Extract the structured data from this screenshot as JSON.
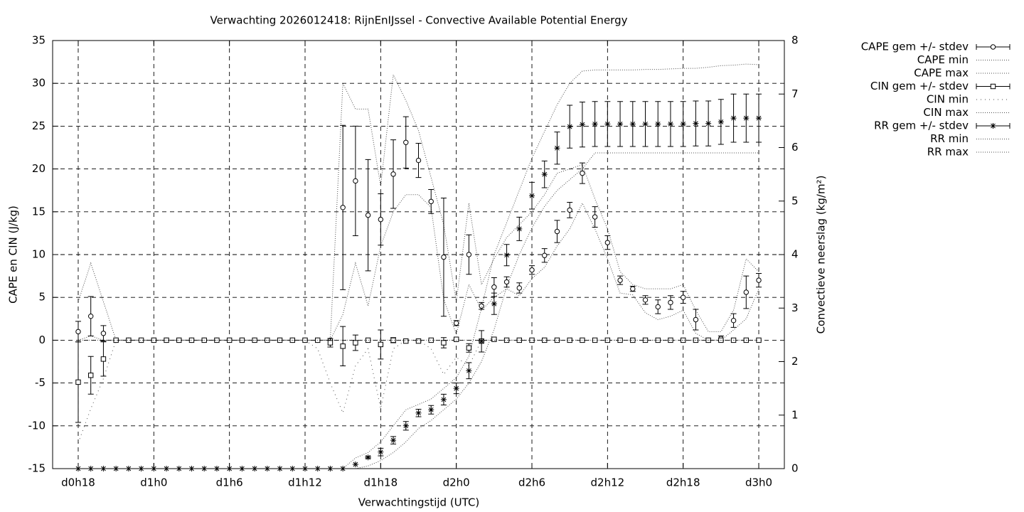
{
  "chart_data": {
    "type": "errorbar-line",
    "title": "Verwachting 2026012418: RijnEnIJssel - Convective Available Potential Energy",
    "x_label": "Verwachtingstijd (UTC)",
    "y_label": "CAPE en CIN (J/kg)",
    "y2_label": "Convectieve neerslag (kg/m²)",
    "categories": [
      "d0h18",
      null,
      null,
      null,
      null,
      null,
      "d1h0",
      null,
      null,
      null,
      null,
      null,
      "d1h6",
      null,
      null,
      null,
      null,
      null,
      "d1h12",
      null,
      null,
      null,
      null,
      null,
      "d1h18",
      null,
      null,
      null,
      null,
      null,
      "d2h0",
      null,
      null,
      null,
      null,
      null,
      "d2h6",
      null,
      null,
      null,
      null,
      null,
      "d2h12",
      null,
      null,
      null,
      null,
      null,
      "d2h18",
      null,
      null,
      null,
      null,
      null,
      "d3h0"
    ],
    "ylim": [
      -15,
      35
    ],
    "yticks": [
      -15,
      -10,
      -5,
      0,
      5,
      10,
      15,
      20,
      25,
      30,
      35
    ],
    "y2lim": [
      0,
      8
    ],
    "y2ticks": [
      0,
      1,
      2,
      3,
      4,
      5,
      6,
      7,
      8
    ],
    "grid": true,
    "legend": "right",
    "series": [
      {
        "name": "CAPE gem +/- stdev",
        "style": "errorbars",
        "marker": "circle",
        "color": "#000000",
        "axis": "y",
        "values": [
          1.0,
          2.8,
          0.8,
          0,
          0,
          0,
          0,
          0,
          0,
          0,
          0,
          0,
          0,
          0,
          0,
          0,
          0,
          0,
          0,
          0,
          0,
          15.5,
          18.6,
          14.6,
          14.1,
          19.4,
          23.1,
          21.0,
          16.2,
          9.7,
          2.0,
          10.0,
          4.0,
          6.2,
          6.8,
          6.1,
          8.2,
          9.9,
          12.7,
          15.2,
          19.5,
          14.4,
          11.4,
          7.0,
          6.0,
          4.7,
          3.9,
          4.4,
          5.0,
          2.4,
          0.0,
          0.2,
          2.3,
          5.6,
          7.0
        ],
        "errors": [
          1.2,
          2.3,
          0.9,
          0,
          0,
          0,
          0,
          0,
          0,
          0,
          0,
          0,
          0,
          0,
          0,
          0,
          0,
          0,
          0,
          0,
          0,
          9.6,
          6.4,
          6.5,
          3.0,
          4.0,
          3.0,
          2.0,
          1.4,
          6.9,
          0.3,
          2.3,
          0.4,
          1.1,
          0.6,
          0.6,
          0.5,
          0.8,
          1.3,
          0.9,
          1.2,
          1.2,
          0.8,
          0.5,
          0.3,
          0.5,
          0.8,
          0.8,
          0.7,
          1.2,
          0.0,
          0.3,
          0.8,
          1.9,
          0.8
        ]
      },
      {
        "name": "CAPE min",
        "style": "dotted",
        "color": "#000000",
        "axis": "y",
        "values": [
          0,
          0.5,
          0,
          0,
          0,
          0,
          0,
          0,
          0,
          0,
          0,
          0,
          0,
          0,
          0,
          0,
          0,
          0,
          0,
          0,
          0,
          3.0,
          9.0,
          4.0,
          11.0,
          15.0,
          17.0,
          17.0,
          15.5,
          4.8,
          0.7,
          6.5,
          3.5,
          5.0,
          6.0,
          5.2,
          7.2,
          8.5,
          11.0,
          13.0,
          16.0,
          13.0,
          9.5,
          5.5,
          5.3,
          3.2,
          2.4,
          2.8,
          3.5,
          0.8,
          0,
          0,
          1.2,
          2.5,
          6.0
        ]
      },
      {
        "name": "CAPE max",
        "style": "dotted",
        "color": "#000000",
        "axis": "y",
        "values": [
          4.5,
          9.0,
          4.5,
          0,
          0,
          0,
          0,
          0,
          0,
          0,
          0,
          0,
          0,
          0,
          0,
          0,
          0,
          0,
          0,
          0,
          0,
          30.0,
          27.0,
          27.0,
          18.0,
          31.0,
          28.0,
          24.5,
          19.0,
          13.5,
          4.5,
          16.0,
          6.5,
          9.5,
          12.0,
          13.5,
          15.0,
          17.0,
          19.5,
          20.0,
          20.5,
          16.5,
          13.0,
          8.0,
          6.5,
          6.0,
          6.0,
          6.0,
          6.5,
          3.5,
          1.0,
          1.0,
          3.5,
          9.5,
          8.0
        ]
      },
      {
        "name": "CIN gem +/- stdev",
        "style": "errorbars",
        "marker": "square",
        "color": "#000000",
        "axis": "y",
        "values": [
          -4.9,
          -4.1,
          -2.2,
          0,
          0,
          0,
          0,
          0,
          0,
          0,
          0,
          0,
          0,
          0,
          0,
          0,
          0,
          0,
          0,
          0,
          -0.3,
          -0.7,
          -0.3,
          0,
          -0.5,
          0,
          -0.1,
          -0.1,
          0,
          -0.3,
          0.1,
          -0.9,
          -0.1,
          0.1,
          0,
          0,
          0,
          0,
          0,
          0,
          0,
          0,
          0,
          0,
          0,
          0,
          0,
          0,
          0,
          0,
          0,
          0,
          0,
          0,
          0
        ],
        "errors": [
          4.7,
          2.2,
          2.0,
          0,
          0,
          0,
          0,
          0,
          0,
          0,
          0,
          0,
          0,
          0,
          0,
          0,
          0,
          0,
          0,
          0,
          0.5,
          2.3,
          0.9,
          0,
          1.7,
          0.3,
          0,
          0,
          0,
          0.6,
          0,
          0.5,
          0,
          0,
          0,
          0,
          0,
          0,
          0,
          0,
          0,
          0,
          0,
          0,
          0,
          0,
          0,
          0,
          0,
          0,
          0,
          0,
          0,
          0,
          0
        ]
      },
      {
        "name": "CIN min",
        "style": "sparse-dotted",
        "color": "#000000",
        "axis": "y",
        "values": [
          -12,
          -8,
          -4.5,
          0,
          0,
          0,
          0,
          0,
          0,
          0,
          0,
          0,
          0,
          0,
          0,
          0,
          0,
          0,
          0,
          -1,
          -5,
          -8.5,
          -3,
          -1,
          -8,
          -1,
          0,
          0,
          -1,
          -4,
          -2,
          -3,
          0,
          0,
          0,
          0,
          0,
          0,
          0,
          0,
          0,
          0,
          0,
          0,
          0,
          0,
          0,
          0,
          0,
          0,
          0,
          0,
          0,
          0,
          0
        ]
      },
      {
        "name": "CIN max",
        "style": "dotted",
        "color": "#000000",
        "axis": "y",
        "values": [
          0,
          0,
          0,
          0,
          0,
          0,
          0,
          0,
          0,
          0,
          0,
          0,
          0,
          0,
          0,
          0,
          0,
          0,
          0,
          0,
          0,
          0,
          0,
          0,
          0,
          0,
          0,
          0,
          0,
          0,
          0,
          0,
          0,
          0,
          0,
          0,
          0,
          0,
          0,
          0,
          0,
          0,
          0,
          0,
          0,
          0,
          0,
          0,
          0,
          0,
          0,
          0,
          0,
          0,
          0
        ]
      },
      {
        "name": "RR gem +/- stdev",
        "style": "errorbars",
        "marker": "asterisk",
        "color": "#000000",
        "axis": "y2",
        "values": [
          0,
          0,
          0,
          0,
          0,
          0,
          0,
          0,
          0,
          0,
          0,
          0,
          0,
          0,
          0,
          0,
          0,
          0,
          0,
          0,
          0,
          0,
          0.08,
          0.21,
          0.31,
          0.53,
          0.8,
          1.04,
          1.1,
          1.29,
          1.5,
          1.83,
          2.38,
          3.08,
          3.99,
          4.48,
          5.1,
          5.5,
          5.99,
          6.39,
          6.43,
          6.44,
          6.44,
          6.44,
          6.44,
          6.44,
          6.44,
          6.44,
          6.44,
          6.45,
          6.45,
          6.48,
          6.55,
          6.55,
          6.55
        ],
        "errors": [
          0,
          0,
          0,
          0,
          0,
          0,
          0,
          0,
          0,
          0,
          0,
          0,
          0,
          0,
          0,
          0,
          0,
          0,
          0,
          0,
          0,
          0,
          0,
          0.02,
          0.07,
          0.07,
          0.08,
          0.07,
          0.08,
          0.1,
          0.1,
          0.15,
          0.2,
          0.2,
          0.2,
          0.22,
          0.25,
          0.25,
          0.3,
          0.4,
          0.42,
          0.42,
          0.42,
          0.42,
          0.42,
          0.42,
          0.42,
          0.42,
          0.42,
          0.42,
          0.42,
          0.42,
          0.45,
          0.45,
          0.45
        ]
      },
      {
        "name": "RR min",
        "style": "dotted",
        "color": "#000000",
        "axis": "y2",
        "values": [
          0,
          0,
          0,
          0,
          0,
          0,
          0,
          0,
          0,
          0,
          0,
          0,
          0,
          0,
          0,
          0,
          0,
          0,
          0,
          0,
          0,
          0,
          0,
          0.05,
          0.15,
          0.3,
          0.5,
          0.75,
          0.9,
          1.1,
          1.3,
          1.6,
          2.0,
          2.6,
          3.4,
          4.0,
          4.5,
          4.9,
          5.2,
          5.4,
          5.6,
          5.9,
          5.9,
          5.9,
          5.9,
          5.9,
          5.9,
          5.9,
          5.9,
          5.9,
          5.9,
          5.9,
          5.9,
          5.9,
          5.9
        ]
      },
      {
        "name": "RR max",
        "style": "dotted",
        "color": "#000000",
        "axis": "y2",
        "values": [
          0,
          0,
          0,
          0,
          0,
          0,
          0,
          0,
          0,
          0,
          0,
          0,
          0,
          0,
          0,
          0,
          0,
          0,
          0,
          0,
          0,
          0,
          0.2,
          0.3,
          0.5,
          0.8,
          1.1,
          1.2,
          1.3,
          1.5,
          1.7,
          2.1,
          3.0,
          4.0,
          4.6,
          5.2,
          5.8,
          6.3,
          6.8,
          7.2,
          7.43,
          7.45,
          7.45,
          7.45,
          7.45,
          7.46,
          7.46,
          7.47,
          7.48,
          7.48,
          7.5,
          7.53,
          7.54,
          7.56,
          7.55
        ]
      }
    ]
  }
}
